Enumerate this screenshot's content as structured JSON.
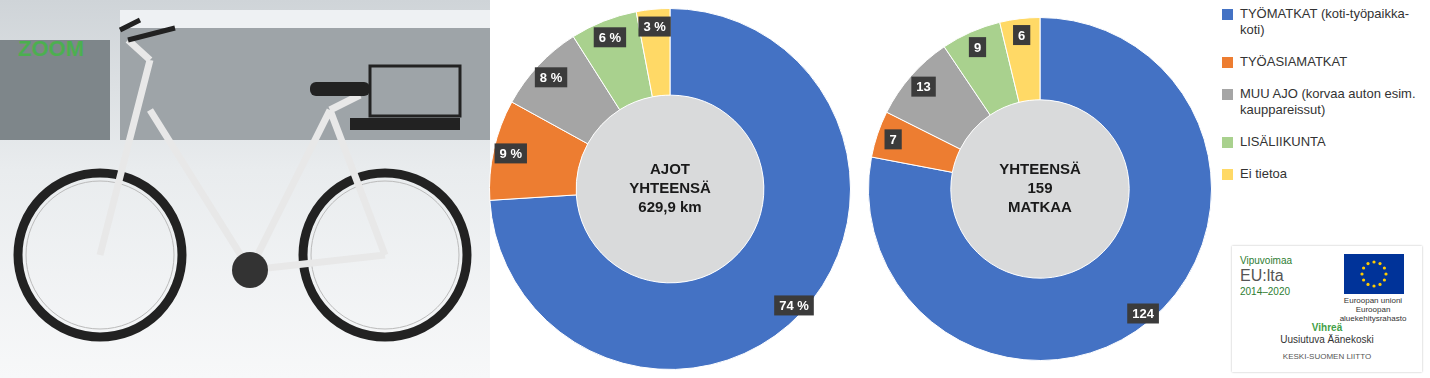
{
  "image_text": "ZOOM",
  "chart_data": [
    {
      "type": "doughnut",
      "annotations": [
        "AJOT",
        "YHTEENSÄ",
        "629,9 km"
      ],
      "categories": [
        "TYÖMATKAT (koti-työpaikka-koti)",
        "TYÖASIAMATKAT",
        "MUU AJO (korvaa auton esim. kauppareissut)",
        "LISÄLIIKUNTA",
        "Ei tietoa"
      ],
      "values": [
        74,
        9,
        8,
        6,
        3
      ],
      "value_labels": [
        "74 %",
        "9 %",
        "8 %",
        "6 %",
        "3 %"
      ],
      "colors": [
        "#4472c4",
        "#ed7d31",
        "#a5a5a5",
        "#a9d18e",
        "#ffd966"
      ],
      "data_labels": true
    },
    {
      "type": "doughnut",
      "annotations": [
        "YHTEENSÄ",
        "159",
        "MATKAA"
      ],
      "categories": [
        "TYÖMATKAT (koti-työpaikka-koti)",
        "TYÖASIAMATKAT",
        "MUU AJO (korvaa auton esim. kauppareissut)",
        "LISÄLIIKUNTA",
        "Ei tietoa"
      ],
      "values": [
        124,
        7,
        13,
        9,
        6
      ],
      "colors": [
        "#4472c4",
        "#ed7d31",
        "#a5a5a5",
        "#a9d18e",
        "#ffd966"
      ],
      "data_labels": true,
      "legend": "right"
    }
  ],
  "logos": [
    "Vipuvoimaa",
    "EU:lta",
    "2014–2020",
    "Euroopan unioni",
    "Euroopan aluekehitysrahasto",
    "Vihreä",
    "Uusiutuva Äänekoski",
    "KESKI-SUOMEN LIITTO"
  ]
}
